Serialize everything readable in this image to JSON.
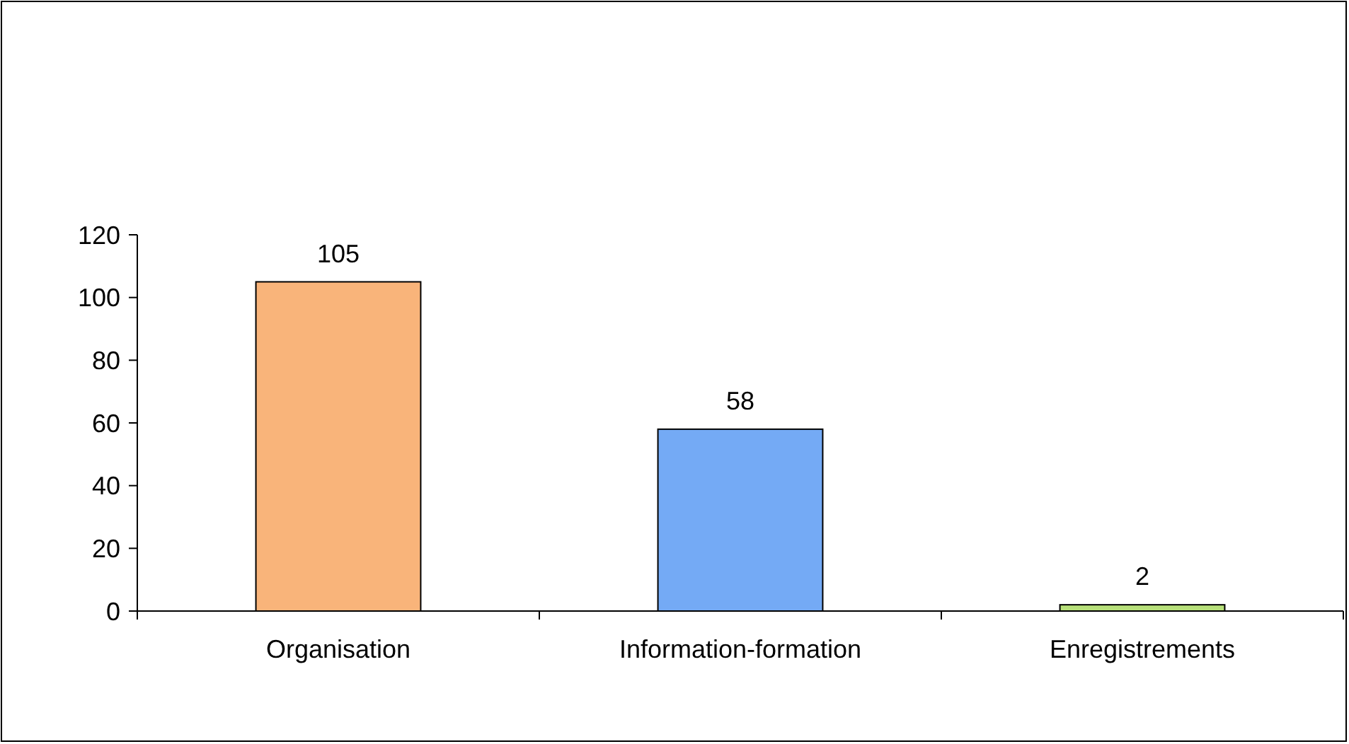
{
  "chart_data": {
    "type": "bar",
    "categories": [
      "Organisation",
      "Information-formation",
      "Enregistrements"
    ],
    "values": [
      105,
      58,
      2
    ],
    "colors": [
      "#f9b47a",
      "#74aaf5",
      "#b7e07a"
    ],
    "ylim": [
      0,
      120
    ],
    "yticks": [
      0,
      20,
      40,
      60,
      80,
      100,
      120
    ],
    "data_labels": true
  }
}
